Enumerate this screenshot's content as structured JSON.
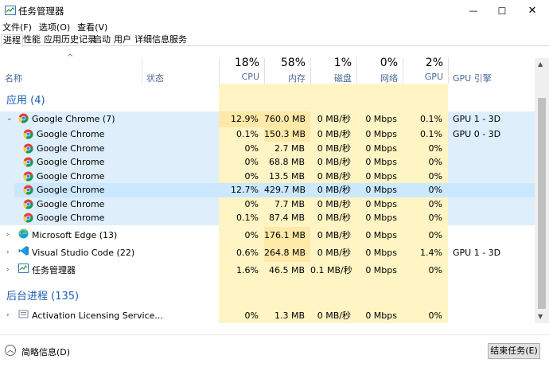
{
  "window": {
    "title": "任务管理器",
    "minimize": "—",
    "maximize": "☐",
    "close": "✕"
  },
  "menu": [
    "文件(F)",
    "选项(O)",
    "查看(V)"
  ],
  "tabs": [
    "进程",
    "性能",
    "应用历史记录",
    "启动",
    "用户",
    "详细信息",
    "服务"
  ],
  "columns": {
    "name": "名称",
    "status": "状态",
    "cpu": {
      "pct": "18%",
      "label": "CPU"
    },
    "mem": {
      "pct": "58%",
      "label": "内存"
    },
    "disk": {
      "pct": "1%",
      "label": "磁盘"
    },
    "net": {
      "pct": "0%",
      "label": "网络"
    },
    "gpu": {
      "pct": "2%",
      "label": "GPU"
    },
    "gpu_engine": "GPU 引擎"
  },
  "groups": {
    "apps": "应用 (4)",
    "background": "后台进程 (135)"
  },
  "rows": [
    {
      "name": "Google Chrome (7)",
      "cpu": "12.9%",
      "mem": "760.0 MB",
      "disk": "0 MB/秒",
      "net": "0 Mbps",
      "gpu": "0.1%",
      "engine": "GPU 1 - 3D"
    },
    {
      "name": "Google Chrome",
      "cpu": "0.1%",
      "mem": "150.3 MB",
      "disk": "0 MB/秒",
      "net": "0 Mbps",
      "gpu": "0.1%",
      "engine": "GPU 0 - 3D"
    },
    {
      "name": "Google Chrome",
      "cpu": "0%",
      "mem": "2.7 MB",
      "disk": "0 MB/秒",
      "net": "0 Mbps",
      "gpu": "0%",
      "engine": ""
    },
    {
      "name": "Google Chrome",
      "cpu": "0%",
      "mem": "68.8 MB",
      "disk": "0 MB/秒",
      "net": "0 Mbps",
      "gpu": "0%",
      "engine": ""
    },
    {
      "name": "Google Chrome",
      "cpu": "0%",
      "mem": "13.5 MB",
      "disk": "0 MB/秒",
      "net": "0 Mbps",
      "gpu": "0%",
      "engine": ""
    },
    {
      "name": "Google Chrome",
      "cpu": "12.7%",
      "mem": "429.7 MB",
      "disk": "0 MB/秒",
      "net": "0 Mbps",
      "gpu": "0%",
      "engine": ""
    },
    {
      "name": "Google Chrome",
      "cpu": "0%",
      "mem": "7.7 MB",
      "disk": "0 MB/秒",
      "net": "0 Mbps",
      "gpu": "0%",
      "engine": ""
    },
    {
      "name": "Google Chrome",
      "cpu": "0.1%",
      "mem": "87.4 MB",
      "disk": "0 MB/秒",
      "net": "0 Mbps",
      "gpu": "0%",
      "engine": ""
    },
    {
      "name": "Microsoft Edge (13)",
      "cpu": "0%",
      "mem": "176.1 MB",
      "disk": "0 MB/秒",
      "net": "0 Mbps",
      "gpu": "0%",
      "engine": ""
    },
    {
      "name": "Visual Studio Code (22)",
      "cpu": "0.6%",
      "mem": "264.8 MB",
      "disk": "0 MB/秒",
      "net": "0 Mbps",
      "gpu": "1.4%",
      "engine": "GPU 1 - 3D"
    },
    {
      "name": "任务管理器",
      "cpu": "1.6%",
      "mem": "46.5 MB",
      "disk": "0.1 MB/秒",
      "net": "0 Mbps",
      "gpu": "0%",
      "engine": ""
    },
    {
      "name": "Activation Licensing Service...",
      "cpu": "0%",
      "mem": "1.3 MB",
      "disk": "0 MB/秒",
      "net": "0 Mbps",
      "gpu": "0%",
      "engine": ""
    }
  ],
  "footer": {
    "details": "简略信息(D)",
    "end_task": "结束任务(E)"
  },
  "colors": {
    "accent": "#1a5fb4",
    "heat_light": "#fff4c4",
    "heat_mid": "#ffe9a8",
    "selected": "#cce8ff",
    "group_band": "#deeffb"
  }
}
